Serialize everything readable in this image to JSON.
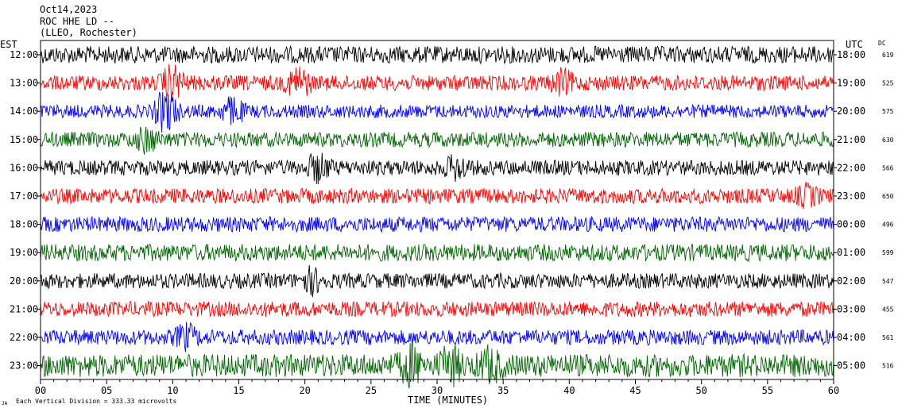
{
  "header": {
    "date": "Oct14,2023",
    "station": "ROC HHE LD --",
    "location": "(LLEO, Rochester)"
  },
  "axes": {
    "left_label": "EST",
    "right_label": "UTC",
    "dc_label": "DC",
    "x_title": "TIME (MINUTES)",
    "footer": "Each Vertical Division =  333.33 microvolts",
    "corner_mark": "JA"
  },
  "colors": {
    "cycle": [
      "#000000",
      "#ff0000",
      "#0000ff",
      "#006400"
    ],
    "background": "#ffffff"
  },
  "chart_data": {
    "type": "line",
    "title": "ROC HHE LD --",
    "xlabel": "TIME (MINUTES)",
    "xlim": [
      0,
      60
    ],
    "x_ticks": [
      "00",
      "05",
      "10",
      "15",
      "20",
      "25",
      "30",
      "35",
      "40",
      "45",
      "50",
      "55",
      "60"
    ],
    "series": [
      {
        "est": "12:00",
        "utc": "18:00",
        "dc": "619",
        "color": "#000000",
        "amplitude": 0.9,
        "events": []
      },
      {
        "est": "13:00",
        "utc": "19:00",
        "dc": "525",
        "color": "#ff0000",
        "amplitude": 0.8,
        "events": [
          {
            "minute": 10,
            "size": 1.6
          },
          {
            "minute": 19.5,
            "size": 1.5
          },
          {
            "minute": 39.5,
            "size": 1.0
          }
        ]
      },
      {
        "est": "14:00",
        "utc": "20:00",
        "dc": "575",
        "color": "#0000ff",
        "amplitude": 0.7,
        "events": [
          {
            "minute": 9.5,
            "size": 2.2
          },
          {
            "minute": 14.5,
            "size": 1.2
          }
        ]
      },
      {
        "est": "15:00",
        "utc": "21:00",
        "dc": "630",
        "color": "#006400",
        "amplitude": 0.8,
        "events": [
          {
            "minute": 8,
            "size": 1.0
          }
        ]
      },
      {
        "est": "16:00",
        "utc": "22:00",
        "dc": "566",
        "color": "#000000",
        "amplitude": 0.8,
        "events": [
          {
            "minute": 21,
            "size": 1.2
          },
          {
            "minute": 31.5,
            "size": 1.0
          }
        ]
      },
      {
        "est": "17:00",
        "utc": "23:00",
        "dc": "650",
        "color": "#ff0000",
        "amplitude": 0.8,
        "events": [
          {
            "minute": 58,
            "size": 0.8
          }
        ]
      },
      {
        "est": "18:00",
        "utc": "00:00",
        "dc": "496",
        "color": "#0000ff",
        "amplitude": 0.8,
        "events": []
      },
      {
        "est": "19:00",
        "utc": "01:00",
        "dc": "599",
        "color": "#006400",
        "amplitude": 0.9,
        "events": []
      },
      {
        "est": "20:00",
        "utc": "02:00",
        "dc": "547",
        "color": "#000000",
        "amplitude": 0.8,
        "events": [
          {
            "minute": 20.5,
            "size": 1.0
          }
        ]
      },
      {
        "est": "21:00",
        "utc": "03:00",
        "dc": "455",
        "color": "#ff0000",
        "amplitude": 0.8,
        "events": []
      },
      {
        "est": "22:00",
        "utc": "04:00",
        "dc": "561",
        "color": "#0000ff",
        "amplitude": 0.8,
        "events": [
          {
            "minute": 11,
            "size": 1.0
          }
        ]
      },
      {
        "est": "23:00",
        "utc": "05:00",
        "dc": "516",
        "color": "#006400",
        "amplitude": 1.2,
        "events": [
          {
            "minute": 28,
            "size": 1.5
          },
          {
            "minute": 31,
            "size": 1.5
          },
          {
            "minute": 34,
            "size": 1.3
          }
        ]
      }
    ]
  }
}
